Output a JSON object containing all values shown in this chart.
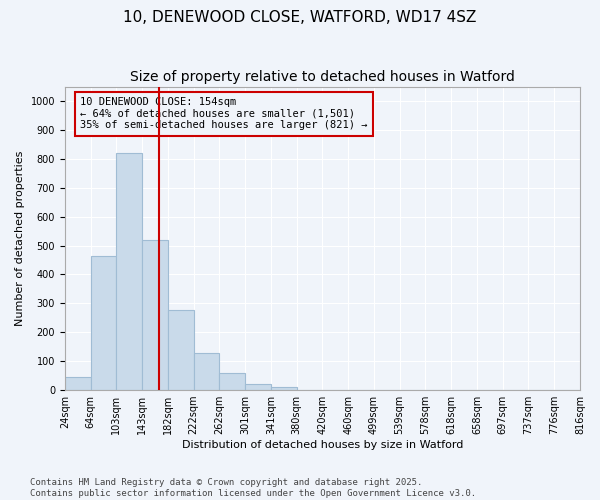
{
  "title": "10, DENEWOOD CLOSE, WATFORD, WD17 4SZ",
  "subtitle": "Size of property relative to detached houses in Watford",
  "xlabel": "Distribution of detached houses by size in Watford",
  "ylabel": "Number of detached properties",
  "bar_color": "#c9daea",
  "bar_edge_color": "#a0bcd4",
  "background_color": "#f0f4fa",
  "grid_color": "#ffffff",
  "annotation_box_color": "#cc0000",
  "vline_color": "#cc0000",
  "bin_labels": [
    "24sqm",
    "64sqm",
    "103sqm",
    "143sqm",
    "182sqm",
    "222sqm",
    "262sqm",
    "301sqm",
    "341sqm",
    "380sqm",
    "420sqm",
    "460sqm",
    "499sqm",
    "539sqm",
    "578sqm",
    "618sqm",
    "658sqm",
    "697sqm",
    "737sqm",
    "776sqm",
    "816sqm"
  ],
  "values": [
    45,
    465,
    820,
    520,
    277,
    127,
    58,
    22,
    10,
    0,
    0,
    0,
    0,
    0,
    0,
    0,
    0,
    0,
    0,
    0
  ],
  "ylim": [
    0,
    1050
  ],
  "yticks": [
    0,
    100,
    200,
    300,
    400,
    500,
    600,
    700,
    800,
    900,
    1000
  ],
  "vline_x": 3.64,
  "annotation_line1": "10 DENEWOOD CLOSE: 154sqm",
  "annotation_line2": "← 64% of detached houses are smaller (1,501)",
  "annotation_line3": "35% of semi-detached houses are larger (821) →",
  "footer_text": "Contains HM Land Registry data © Crown copyright and database right 2025.\nContains public sector information licensed under the Open Government Licence v3.0.",
  "title_fontsize": 11,
  "subtitle_fontsize": 10,
  "annotation_fontsize": 7.5,
  "footer_fontsize": 6.5,
  "axis_label_fontsize": 8,
  "tick_fontsize": 7
}
